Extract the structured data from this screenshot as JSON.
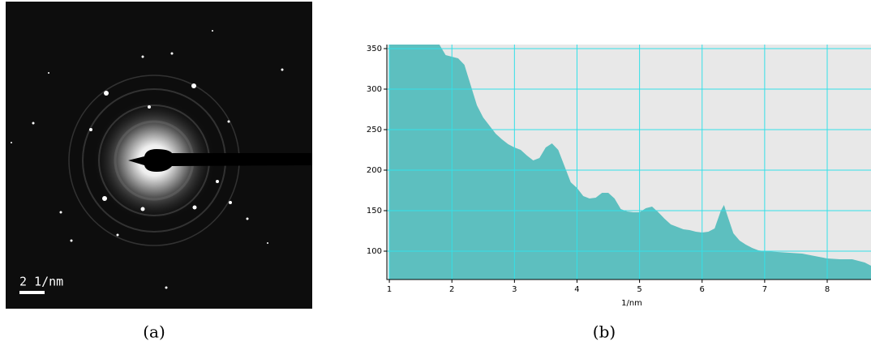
{
  "panel_a": {
    "scale_bar_label": "2 1/nm",
    "caption": "(a)"
  },
  "chart_data": {
    "type": "area",
    "caption": "(b)",
    "x_label": "1/nm",
    "x": [
      1.0,
      1.2,
      1.4,
      1.6,
      1.8,
      1.9,
      2.0,
      2.1,
      2.2,
      2.3,
      2.4,
      2.5,
      2.6,
      2.7,
      2.8,
      2.9,
      3.0,
      3.1,
      3.2,
      3.3,
      3.4,
      3.5,
      3.6,
      3.7,
      3.8,
      3.9,
      4.0,
      4.1,
      4.2,
      4.3,
      4.4,
      4.5,
      4.6,
      4.7,
      4.8,
      4.9,
      5.0,
      5.1,
      5.2,
      5.3,
      5.4,
      5.5,
      5.6,
      5.7,
      5.8,
      5.9,
      6.0,
      6.1,
      6.2,
      6.3,
      6.35,
      6.4,
      6.5,
      6.6,
      6.7,
      6.8,
      6.9,
      7.0,
      7.2,
      7.4,
      7.6,
      7.8,
      8.0,
      8.2,
      8.4,
      8.6,
      8.7
    ],
    "values": [
      355,
      355,
      355,
      355,
      355,
      342,
      340,
      338,
      330,
      305,
      280,
      265,
      255,
      245,
      238,
      232,
      228,
      225,
      218,
      212,
      215,
      228,
      233,
      225,
      205,
      185,
      178,
      168,
      165,
      166,
      172,
      172,
      165,
      152,
      149,
      148,
      148,
      153,
      155,
      148,
      140,
      133,
      130,
      127,
      126,
      124,
      123,
      124,
      128,
      150,
      157,
      145,
      122,
      113,
      108,
      104,
      101,
      100,
      99,
      98,
      97,
      94,
      91,
      90,
      90,
      86,
      82
    ],
    "color": "#5dbfbf",
    "grid_color": "#33e0e8",
    "background": "#e8e8e8",
    "xlim": [
      0.96,
      8.7
    ],
    "ylim": [
      65,
      355
    ],
    "xticks": [
      1,
      2,
      3,
      4,
      5,
      6,
      7,
      8
    ],
    "yticks": [
      100,
      150,
      200,
      250,
      300,
      350
    ],
    "grid": true
  }
}
